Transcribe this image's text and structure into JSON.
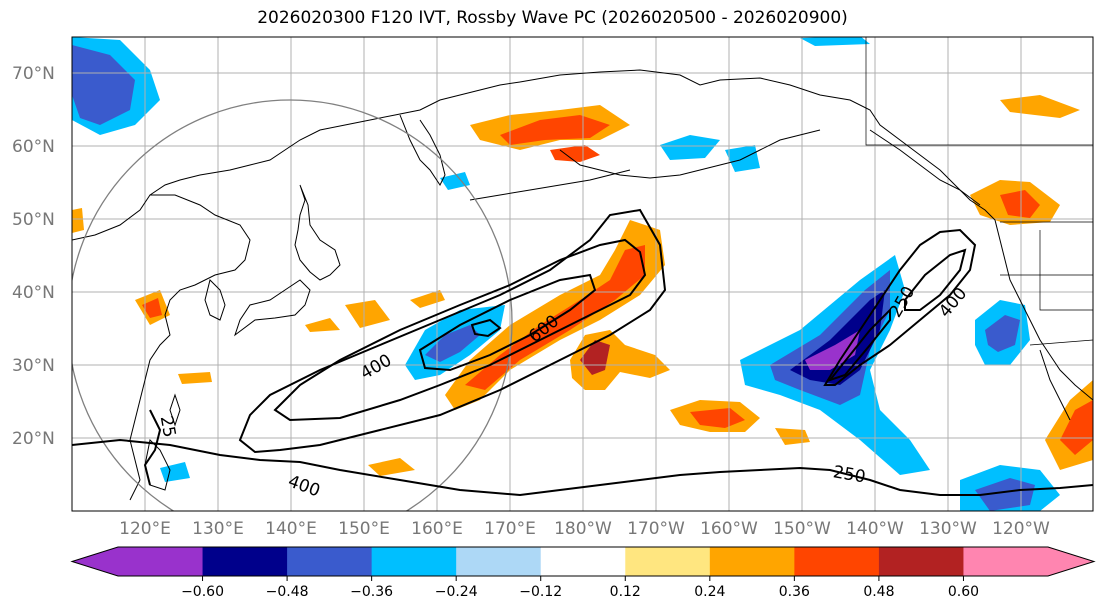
{
  "title": "2026020300 F120 IVT, Rossby Wave PC (2026020500 - 2026020900)",
  "map": {
    "lat_labels": [
      "70°N",
      "60°N",
      "50°N",
      "40°N",
      "30°N",
      "20°N"
    ],
    "lon_labels": [
      "120°E",
      "130°E",
      "140°E",
      "150°E",
      "160°E",
      "170°E",
      "180°W",
      "170°W",
      "160°W",
      "150°W",
      "140°W",
      "130°W",
      "120°W"
    ],
    "contour_labels": [
      "400",
      "600",
      "250",
      "400",
      "25",
      "400",
      "250"
    ]
  },
  "colorbar": {
    "colors": [
      "#9932CC",
      "#00008B",
      "#3A5BCD",
      "#00BFFF",
      "#ADD8F6",
      "#FFFFFF",
      "#FFE680",
      "#FFA500",
      "#FF4500",
      "#B22222",
      "#FF85B0"
    ],
    "ticks": [
      "−0.60",
      "−0.48",
      "−0.36",
      "−0.24",
      "−0.12",
      "0.12",
      "0.24",
      "0.36",
      "0.48",
      "0.60"
    ]
  }
}
